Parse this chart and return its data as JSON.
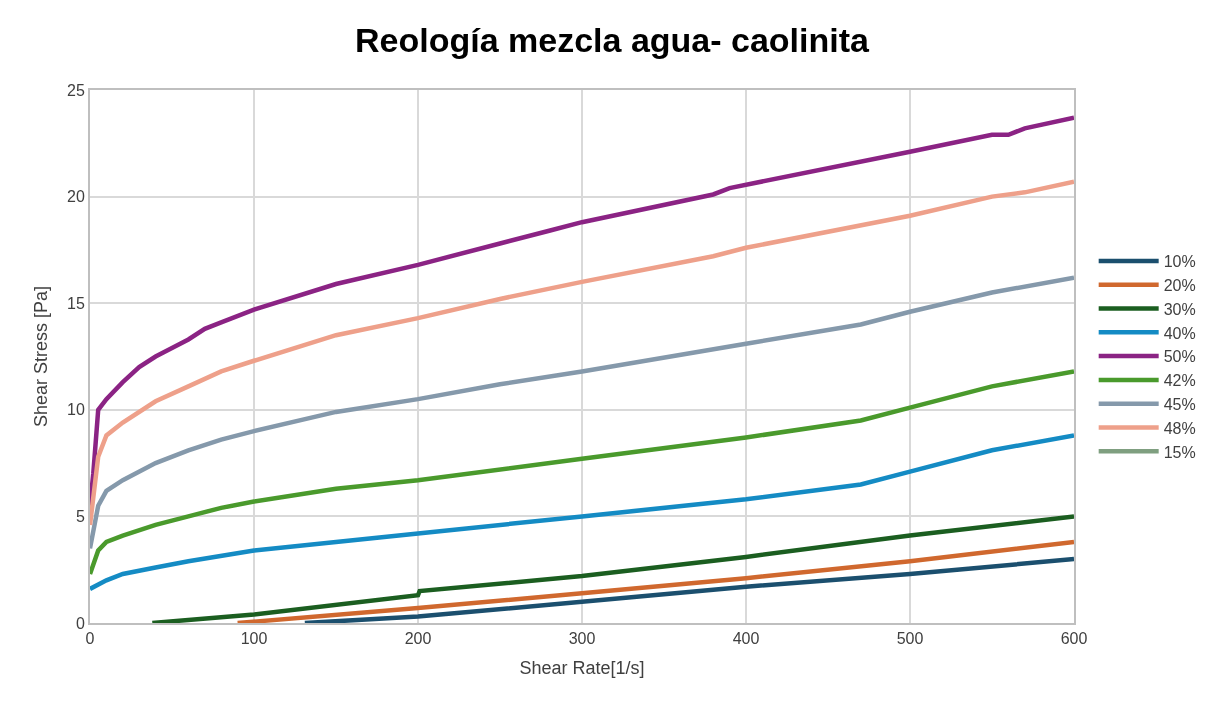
{
  "chart_data": {
    "type": "line",
    "title": "Reología mezcla agua- caolinita",
    "xlabel": "Shear Rate[1/s]",
    "ylabel": "Shear Stress [Pa]",
    "xlim": [
      0,
      600
    ],
    "xticks": [
      0,
      100,
      200,
      300,
      400,
      500,
      600
    ],
    "ylim": [
      0,
      25
    ],
    "yticks": [
      0,
      5,
      10,
      15,
      20,
      25
    ],
    "grid": true,
    "legend": "right",
    "line_style": "solid",
    "marker": "none",
    "series": [
      {
        "name": "10%",
        "color": "#1b4f6e",
        "x": [
          131,
          200,
          300,
          400,
          500,
          600
        ],
        "values": [
          0,
          0.3,
          1.0,
          1.7,
          2.3,
          3.0
        ]
      },
      {
        "name": "20%",
        "color": "#d0682e",
        "x": [
          90,
          200,
          300,
          400,
          500,
          600
        ],
        "values": [
          0,
          0.7,
          1.4,
          2.1,
          2.9,
          3.8
        ]
      },
      {
        "name": "30%",
        "color": "#1b5e20",
        "x": [
          38,
          100,
          200,
          201,
          300,
          400,
          500,
          600
        ],
        "values": [
          0,
          0.4,
          1.3,
          1.5,
          2.2,
          3.1,
          4.1,
          5.0
        ]
      },
      {
        "name": "40%",
        "color": "#148bc4",
        "x": [
          0,
          10,
          20,
          40,
          60,
          100,
          150,
          200,
          300,
          400,
          470,
          500,
          550,
          600
        ],
        "values": [
          1.6,
          2.0,
          2.3,
          2.6,
          2.9,
          3.4,
          3.8,
          4.2,
          5.0,
          5.8,
          6.5,
          7.1,
          8.1,
          8.8
        ]
      },
      {
        "name": "50%",
        "color": "#8b2384",
        "x": [
          0,
          2,
          5,
          10,
          20,
          30,
          40,
          50,
          60,
          70,
          80,
          100,
          150,
          200,
          250,
          280,
          300,
          380,
          390,
          500,
          550,
          560,
          570,
          600
        ],
        "values": [
          5.5,
          7,
          10,
          10.5,
          11.3,
          12.0,
          12.5,
          12.9,
          13.3,
          13.8,
          14.1,
          14.7,
          15.9,
          16.8,
          17.8,
          18.4,
          18.8,
          20.1,
          20.4,
          22.1,
          22.9,
          22.9,
          23.2,
          23.7
        ]
      },
      {
        "name": "42%",
        "color": "#4a9a2c",
        "x": [
          0,
          5,
          10,
          20,
          40,
          60,
          80,
          100,
          150,
          200,
          300,
          400,
          470,
          500,
          550,
          600
        ],
        "values": [
          2.3,
          3.4,
          3.8,
          4.1,
          4.6,
          5.0,
          5.4,
          5.7,
          6.3,
          6.7,
          7.7,
          8.7,
          9.5,
          10.1,
          11.1,
          11.8
        ]
      },
      {
        "name": "45%",
        "color": "#8599ab",
        "x": [
          0,
          5,
          10,
          20,
          40,
          60,
          80,
          100,
          150,
          200,
          250,
          300,
          400,
          470,
          500,
          550,
          600
        ],
        "values": [
          3.5,
          5.5,
          6.2,
          6.7,
          7.5,
          8.1,
          8.6,
          9.0,
          9.9,
          10.5,
          11.2,
          11.8,
          13.1,
          14.0,
          14.6,
          15.5,
          16.2
        ]
      },
      {
        "name": "48%",
        "color": "#eea08a",
        "x": [
          0,
          5,
          10,
          20,
          40,
          60,
          80,
          100,
          150,
          200,
          250,
          300,
          380,
          400,
          500,
          550,
          570,
          600
        ],
        "values": [
          4.6,
          7.8,
          8.8,
          9.4,
          10.4,
          11.1,
          11.8,
          12.3,
          13.5,
          14.3,
          15.2,
          16.0,
          17.2,
          17.6,
          19.1,
          20.0,
          20.2,
          20.7
        ]
      },
      {
        "name": "15%",
        "color": "#7f9f80",
        "values": [
          null
        ]
      }
    ]
  }
}
